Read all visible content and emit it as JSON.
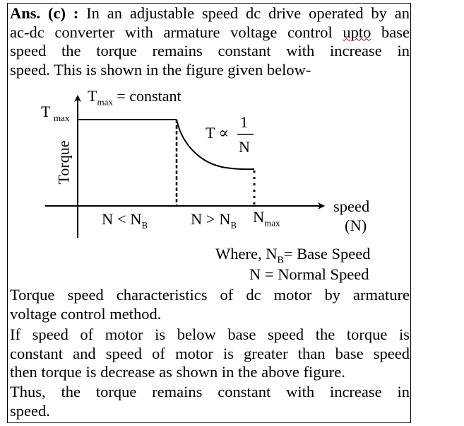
{
  "answer": {
    "label": "Ans. (c) :",
    "lines": [
      "In an adjustable speed dc drive operated by an",
      "ac-dc converter with armature voltage control",
      "upto",
      "base",
      "speed the torque remains constant with increase in",
      "speed. This is shown in the figure given below-"
    ]
  },
  "figure": {
    "tmax_constant": {
      "T": "T",
      "sub": "max",
      "eq": "= constant"
    },
    "axis_tmax": {
      "T": "T",
      "sub": "max"
    },
    "ylabel": "Torque",
    "relation": {
      "lhs": "T ∝",
      "num": "1",
      "den": "N"
    },
    "xlabel_line1": "speed",
    "xlabel_line2": "(N)",
    "region_below": {
      "text": "N < N",
      "sub": "B"
    },
    "region_above": {
      "text": "N > N",
      "sub": "B"
    },
    "nmax": {
      "text": "N",
      "sub": "max"
    }
  },
  "where": {
    "line1_prefix": "Where,  N",
    "line1_sub": "B",
    "line1_rest": "= Base Speed",
    "line2": "N =  Normal Speed"
  },
  "body": {
    "para1": [
      "Torque speed characteristics of dc motor by armature",
      "voltage control method."
    ],
    "para2": [
      "If speed of motor is below base speed the torque is",
      "constant and speed of motor is greater than base speed",
      "then torque is decrease as shown in the above figure."
    ],
    "para3": [
      "Thus, the torque remains constant with increase in",
      "speed."
    ]
  }
}
